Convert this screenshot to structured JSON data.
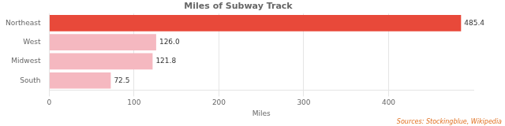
{
  "chart_data": {
    "type": "bar",
    "orientation": "horizontal",
    "title": "Miles of Subway Track",
    "categories": [
      "Northeast",
      "West",
      "Midwest",
      "South"
    ],
    "values": [
      485.4,
      126.0,
      121.8,
      72.5
    ],
    "value_labels": [
      "485.4",
      "126.0",
      "121.8",
      "72.5"
    ],
    "data_labels": true,
    "colors": [
      "#e8493a",
      "#f5b8c0",
      "#f5b8c0",
      "#f5b8c0"
    ],
    "xlabel": "Miles",
    "xlim": [
      0,
      500
    ],
    "xticks": [
      0,
      100,
      200,
      300,
      400
    ],
    "grid": true,
    "annotation": "Sources: Stockingblue, Wikipedia"
  }
}
